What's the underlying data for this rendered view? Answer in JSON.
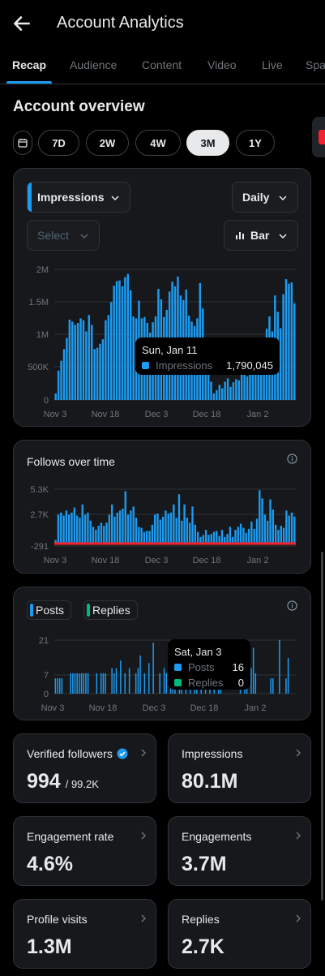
{
  "header": {
    "title": "Account Analytics"
  },
  "tabs": [
    "Recap",
    "Audience",
    "Content",
    "Video",
    "Live",
    "Spa"
  ],
  "section_title": "Account overview",
  "ranges": [
    "7D",
    "2W",
    "4W",
    "3M",
    "1Y"
  ],
  "active_range": "3M",
  "impressions_card": {
    "metric": "Impressions",
    "period": "Daily",
    "select_placeholder": "Select",
    "chart_type_label": "Bar",
    "tooltip": {
      "date": "Sun, Jan 11",
      "series": "Impressions",
      "value": "1,790,045"
    },
    "colors": {
      "bar": "#1d9bf0",
      "highlight": "#5b6168"
    }
  },
  "follows_card": {
    "title": "Follows over time"
  },
  "posts_card": {
    "legend": [
      "Posts",
      "Replies"
    ],
    "tooltip": {
      "date": "Sat, Jan 3",
      "posts_label": "Posts",
      "posts_value": "16",
      "replies_label": "Replies",
      "replies_value": "0"
    },
    "colors": {
      "posts": "#1d9bf0",
      "replies": "#00ba7c"
    }
  },
  "stats": [
    {
      "label": "Verified followers",
      "value": "994",
      "sub": "/ 99.2K",
      "verified": true
    },
    {
      "label": "Impressions",
      "value": "80.1M",
      "sub": ""
    },
    {
      "label": "Engagement rate",
      "value": "4.6%",
      "sub": ""
    },
    {
      "label": "Engagements",
      "value": "3.7M",
      "sub": ""
    },
    {
      "label": "Profile visits",
      "value": "1.3M",
      "sub": ""
    },
    {
      "label": "Replies",
      "value": "2.7K",
      "sub": ""
    }
  ],
  "chart_data": [
    {
      "type": "bar",
      "title": "Impressions",
      "x_tick_labels": [
        "Nov 3",
        "Nov 18",
        "Dec 3",
        "Dec 18",
        "Jan 2"
      ],
      "y_tick_labels": [
        "2M",
        "1.5M",
        "1M",
        "500K",
        "0"
      ],
      "ylim": [
        0,
        2000000
      ],
      "grid": true,
      "values": [
        100000,
        450000,
        600000,
        780000,
        950000,
        1230000,
        1200000,
        1150000,
        1180000,
        1250000,
        1220000,
        1050000,
        1300000,
        1150000,
        780000,
        800000,
        860000,
        930000,
        1220000,
        1300000,
        1500000,
        1750000,
        1820000,
        1830000,
        1740000,
        1880000,
        1930000,
        1680000,
        1280000,
        1250000,
        1520000,
        1250000,
        1270000,
        1180000,
        1030000,
        1190000,
        1280000,
        1700000,
        1540000,
        1270000,
        1380000,
        1660000,
        1810000,
        1740000,
        1890000,
        1600000,
        1530000,
        1690000,
        1290000,
        1200000,
        1130000,
        1250000,
        1790045,
        1400000,
        900000,
        550000,
        280000,
        100000,
        150000,
        230000,
        180000,
        280000,
        330000,
        200000,
        270000,
        320000,
        300000,
        400000,
        460000,
        360000,
        470000,
        430000,
        500000,
        420000,
        420000,
        730000,
        1090000,
        1280000,
        1050000,
        1600000,
        1350000,
        1100000,
        1620000,
        1850000,
        1780000,
        1800000,
        1480000
      ],
      "highlight_index": 87
    },
    {
      "type": "bar",
      "title": "Follows over time",
      "x_tick_labels": [
        "Nov 3",
        "Nov 18",
        "Dec 3",
        "Dec 18",
        "Jan 2"
      ],
      "y_tick_labels": [
        "5.3K",
        "2.7K",
        "-291"
      ],
      "ylim": [
        -291,
        5300
      ],
      "grid": true,
      "values": [
        300,
        2800,
        3000,
        2700,
        3200,
        2800,
        3000,
        3500,
        2700,
        2500,
        3800,
        2800,
        3000,
        2200,
        1600,
        1300,
        1700,
        2000,
        1700,
        2000,
        2800,
        3800,
        2600,
        3000,
        3200,
        3400,
        5100,
        2800,
        3200,
        3600,
        2500,
        1600,
        1500,
        1100,
        1200,
        1200,
        1800,
        2800,
        2900,
        2300,
        2600,
        3200,
        2900,
        3000,
        3800,
        2500,
        4800,
        2200,
        3800,
        2500,
        2000,
        3600,
        1800,
        1100,
        600,
        800,
        1300,
        800,
        900,
        1100,
        1200,
        700,
        1300,
        600,
        900,
        1600,
        600,
        1300,
        1600,
        1900,
        1500,
        1000,
        1400,
        2100,
        1400,
        2400,
        5200,
        4400,
        2800,
        2200,
        4300,
        3300,
        1800,
        1300,
        1700,
        1500,
        3200,
        2700,
        3000,
        2600
      ],
      "negative_band": -80
    },
    {
      "type": "bar",
      "title": "Posts and Replies",
      "series": [
        {
          "name": "Posts"
        },
        {
          "name": "Replies"
        }
      ],
      "x_tick_labels": [
        "Nov 3",
        "Nov 18",
        "Dec 3",
        "Dec 18",
        "Jan 2"
      ],
      "y_tick_labels": [
        "21",
        "7",
        "0"
      ],
      "ylim": [
        0,
        21
      ],
      "grid": true,
      "posts": [
        6,
        6,
        6,
        6,
        0,
        0,
        0,
        8,
        8,
        8,
        8,
        8,
        8,
        8,
        8,
        8,
        0,
        0,
        0,
        8,
        0,
        8,
        8,
        8,
        0,
        0,
        10,
        8,
        10,
        0,
        13,
        0,
        8,
        0,
        10,
        0,
        0,
        8,
        10,
        15,
        0,
        8,
        0,
        12,
        0,
        20,
        0,
        0,
        8,
        0,
        10,
        8,
        0,
        8,
        14,
        16,
        0,
        17,
        8,
        0,
        8,
        0,
        10,
        0,
        8,
        8,
        0,
        10,
        0,
        12,
        0,
        8,
        0,
        8,
        0,
        8,
        16,
        0,
        0,
        0,
        0,
        0,
        0,
        0,
        0,
        16,
        0,
        18,
        14,
        0,
        10,
        18,
        8,
        0,
        0,
        0,
        0,
        0,
        0,
        6,
        6,
        0,
        0,
        21,
        0,
        0,
        6,
        14,
        0,
        0,
        0
      ],
      "replies": []
    }
  ]
}
